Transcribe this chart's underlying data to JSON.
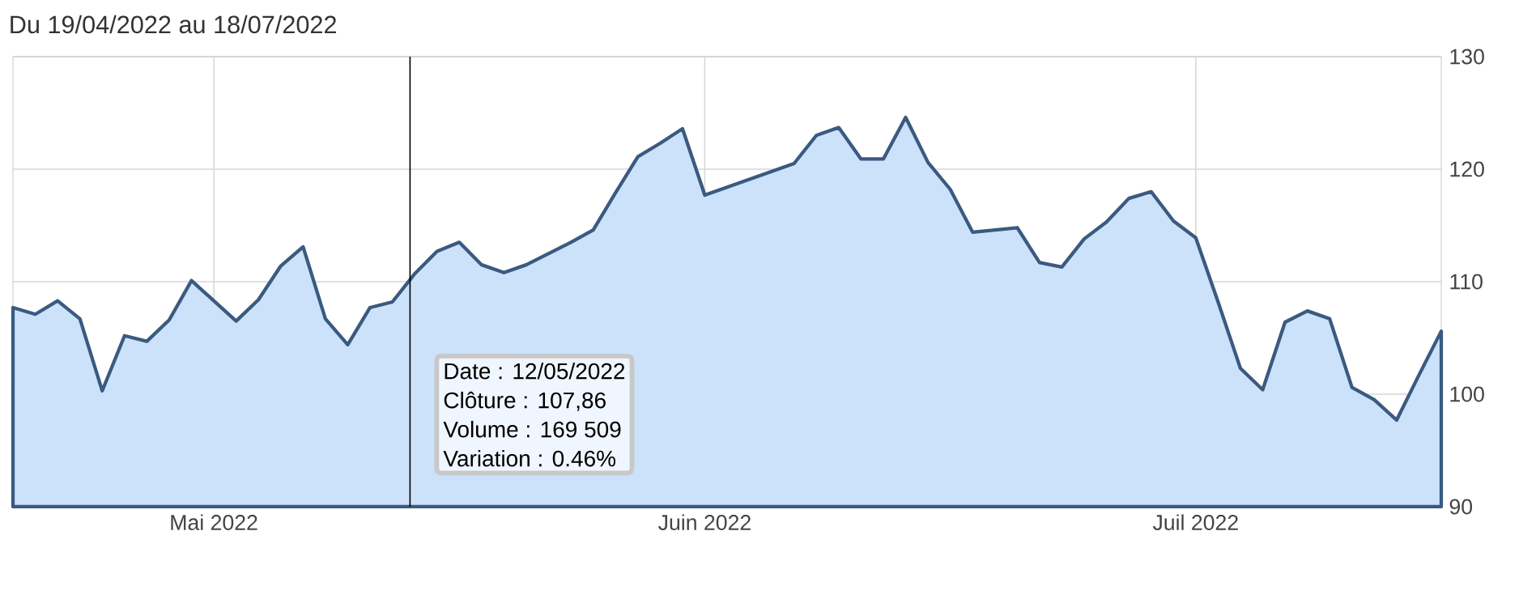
{
  "chart_data": {
    "type": "area",
    "title": "Du 19/04/2022 au 18/07/2022",
    "categories": [
      null,
      null,
      null,
      null,
      null,
      null,
      null,
      null,
      null,
      "Mai 2022",
      null,
      null,
      null,
      null,
      null,
      null,
      null,
      null,
      null,
      null,
      null,
      null,
      null,
      null,
      null,
      null,
      null,
      null,
      null,
      null,
      null,
      "Juin 2022",
      null,
      null,
      null,
      null,
      null,
      null,
      null,
      null,
      null,
      null,
      null,
      null,
      null,
      null,
      null,
      null,
      null,
      null,
      null,
      null,
      null,
      "Juil 2022",
      null,
      null,
      null,
      null,
      null,
      null,
      null,
      null,
      null,
      null,
      null
    ],
    "series": [
      {
        "color": "#3a5a80",
        "values": [
          107.7,
          107.1,
          108.3,
          106.7,
          100.3,
          105.2,
          104.7,
          106.6,
          110.1,
          108.3,
          106.5,
          108.4,
          111.4,
          113.1,
          106.7,
          104.4,
          107.7,
          108.2,
          110.7,
          112.7,
          113.5,
          111.5,
          110.8,
          111.5,
          112.5,
          113.5,
          114.6,
          117.9,
          121.1,
          122.3,
          123.6,
          117.7,
          118.4,
          119.1,
          119.8,
          120.5,
          123.0,
          123.7,
          120.9,
          120.9,
          124.6,
          120.6,
          118.2,
          114.4,
          114.6,
          114.8,
          111.7,
          111.3,
          113.8,
          115.3,
          117.4,
          118.0,
          115.4,
          113.9,
          108.2,
          102.3,
          100.4,
          106.4,
          107.4,
          106.7,
          100.6,
          99.5,
          97.7,
          101.7,
          105.6
        ]
      }
    ],
    "ylim": [
      90,
      130
    ],
    "yticks": [
      90,
      100,
      110,
      120,
      130
    ],
    "grid": true,
    "marker": "none",
    "line_style": "solid",
    "annotations": [
      "Date : 12/05/2022",
      "Clôture : 107,86",
      "Volume : 169 509",
      "Variation : 0.46%"
    ]
  }
}
